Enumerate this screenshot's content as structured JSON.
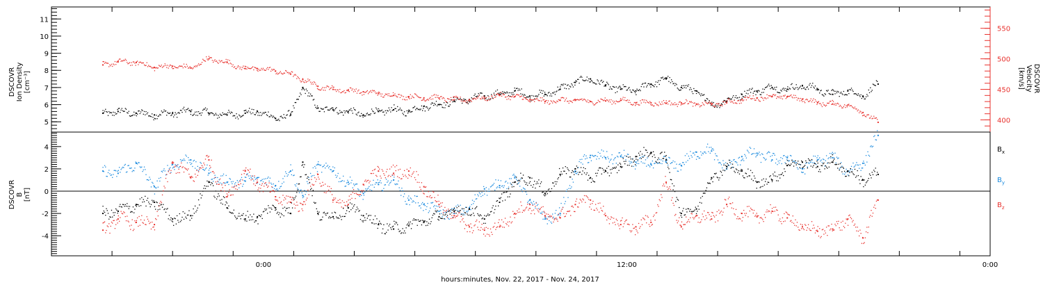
{
  "figure": {
    "xlabel": "hours:minutes, Nov. 22, 2017 - Nov. 24, 2017"
  },
  "chart_data": [
    {
      "type": "scatter",
      "panel": "top",
      "left_label": [
        "DSCOVR",
        "Ion Density",
        "[cm⁻³]"
      ],
      "right_label": [
        "DSCOVR",
        "Velocity",
        "[km/s]"
      ],
      "xlim_hours": [
        -7,
        24
      ],
      "x_ticks": [
        {
          "hour": 0,
          "label": "0:00"
        },
        {
          "hour": 12,
          "label": "12:00"
        },
        {
          "hour": 24,
          "label": "0:00"
        }
      ],
      "y_left_lim": [
        4.4,
        11.7
      ],
      "y_left_ticks": [
        5,
        6,
        7,
        8,
        9,
        10,
        11
      ],
      "y_right_lim": [
        380,
        585
      ],
      "y_right_ticks": [
        400,
        450,
        500,
        550
      ],
      "series": [
        {
          "axis": "left",
          "color": "#000000",
          "x_hours": [
            -5.3,
            -4.8,
            -4.2,
            -3.6,
            -3.0,
            -2.4,
            -1.8,
            -1.2,
            -0.6,
            -0.2,
            0.4,
            0.9,
            1.3,
            1.8,
            2.3,
            2.8,
            3.3,
            3.8,
            4.3,
            4.8,
            5.3,
            5.8,
            6.3,
            6.8,
            7.3,
            7.8,
            8.3,
            8.8,
            9.3,
            9.8,
            10.3,
            10.8,
            11.3,
            11.8,
            12.3,
            12.8,
            13.3,
            13.8,
            14.3,
            14.8,
            15.3,
            15.8,
            16.3,
            16.8,
            17.3,
            17.8,
            18.3,
            18.8,
            19.3,
            19.8,
            20.3
          ],
          "values": [
            5.5,
            5.6,
            5.5,
            5.4,
            5.5,
            5.6,
            5.5,
            5.4,
            5.5,
            5.6,
            5.2,
            5.4,
            7.0,
            5.8,
            5.7,
            5.6,
            5.4,
            5.6,
            5.7,
            5.6,
            5.9,
            6.0,
            6.2,
            6.3,
            6.5,
            6.6,
            6.8,
            6.5,
            6.6,
            6.9,
            7.3,
            7.5,
            7.1,
            6.9,
            6.8,
            7.2,
            7.5,
            7.0,
            6.8,
            6.0,
            6.2,
            6.6,
            6.8,
            7.0,
            6.9,
            7.1,
            6.9,
            6.6,
            6.8,
            6.5,
            7.2
          ]
        },
        {
          "axis": "right",
          "color": "#e8312d",
          "x_hours": [
            -5.3,
            -4.8,
            -4.2,
            -3.6,
            -3.0,
            -2.4,
            -1.8,
            -1.2,
            -0.6,
            -0.2,
            0.4,
            0.9,
            1.3,
            1.8,
            2.3,
            2.8,
            3.3,
            3.8,
            4.3,
            4.8,
            5.3,
            5.8,
            6.3,
            6.8,
            7.3,
            7.8,
            8.3,
            8.8,
            9.3,
            9.8,
            10.3,
            10.8,
            11.3,
            11.8,
            12.3,
            12.8,
            13.3,
            13.8,
            14.3,
            14.8,
            15.3,
            15.8,
            16.3,
            16.8,
            17.3,
            17.8,
            18.3,
            18.8,
            19.3,
            19.8,
            20.3
          ],
          "values": [
            490,
            495,
            494,
            486,
            488,
            485,
            500,
            494,
            484,
            484,
            480,
            475,
            466,
            455,
            450,
            448,
            446,
            443,
            440,
            438,
            436,
            436,
            433,
            433,
            436,
            440,
            438,
            433,
            430,
            432,
            432,
            430,
            431,
            432,
            428,
            428,
            427,
            428,
            426,
            425,
            428,
            433,
            436,
            438,
            438,
            434,
            428,
            426,
            424,
            412,
            396
          ]
        }
      ]
    },
    {
      "type": "scatter",
      "panel": "bottom",
      "left_label": [
        "DSCOVR",
        "B",
        "[nT]"
      ],
      "xlim_hours": [
        -7,
        24
      ],
      "y_lim": [
        -5.8,
        5.3
      ],
      "y_ticks": [
        -4,
        -2,
        0,
        2,
        4
      ],
      "zero_line": true,
      "series": [
        {
          "name": "B",
          "sub": "x",
          "color": "#000000",
          "x_hours": [
            -5.3,
            -4.8,
            -4.2,
            -3.6,
            -3.0,
            -2.4,
            -1.8,
            -1.2,
            -0.6,
            -0.2,
            0.4,
            0.9,
            1.3,
            1.8,
            2.3,
            2.8,
            3.3,
            3.8,
            4.3,
            4.8,
            5.3,
            5.8,
            6.3,
            6.8,
            7.3,
            7.8,
            8.3,
            8.8,
            9.3,
            9.8,
            10.3,
            10.8,
            11.3,
            11.8,
            12.3,
            12.8,
            13.3,
            13.8,
            14.3,
            14.8,
            15.3,
            15.8,
            16.3,
            16.8,
            17.3,
            17.8,
            18.3,
            18.8,
            19.3,
            19.8,
            20.3
          ],
          "values": [
            -2.0,
            -1.8,
            -1.2,
            -1.0,
            -2.5,
            -2.2,
            0.8,
            -1.5,
            -2.5,
            -2.3,
            -1.5,
            -2.0,
            2.6,
            -2.0,
            -2.3,
            -1.5,
            -2.2,
            -3.0,
            -3.4,
            -3.1,
            -2.7,
            -2.3,
            -1.8,
            -1.6,
            -2.5,
            -1.0,
            0.8,
            1.2,
            -0.2,
            1.5,
            2.0,
            1.2,
            1.8,
            2.2,
            3.1,
            3.4,
            2.8,
            -2.0,
            -1.6,
            1.2,
            2.2,
            1.8,
            0.8,
            1.0,
            2.3,
            2.6,
            2.2,
            2.6,
            1.8,
            1.0,
            1.5
          ]
        },
        {
          "name": "B",
          "sub": "y",
          "color": "#1a8ade",
          "x_hours": [
            -5.3,
            -4.8,
            -4.2,
            -3.6,
            -3.0,
            -2.4,
            -1.8,
            -1.2,
            -0.6,
            -0.2,
            0.4,
            0.9,
            1.3,
            1.8,
            2.3,
            2.8,
            3.3,
            3.8,
            4.3,
            4.8,
            5.3,
            5.8,
            6.3,
            6.8,
            7.3,
            7.8,
            8.3,
            8.8,
            9.3,
            9.8,
            10.3,
            10.8,
            11.3,
            11.8,
            12.3,
            12.8,
            13.3,
            13.8,
            14.3,
            14.8,
            15.3,
            15.8,
            16.3,
            16.8,
            17.3,
            17.8,
            18.3,
            18.8,
            19.3,
            19.8,
            20.3
          ],
          "values": [
            1.8,
            1.6,
            2.5,
            0.4,
            2.4,
            2.8,
            1.6,
            0.8,
            0.9,
            1.2,
            0.5,
            1.8,
            -0.4,
            2.4,
            1.8,
            0.8,
            -0.2,
            0.6,
            1.0,
            -0.8,
            -1.2,
            -1.8,
            -2.0,
            -1.5,
            0.2,
            0.5,
            1.2,
            -0.8,
            -2.5,
            -2.0,
            1.8,
            3.2,
            3.0,
            3.1,
            2.6,
            2.4,
            2.6,
            2.3,
            3.5,
            3.6,
            2.0,
            3.1,
            3.4,
            2.8,
            3.0,
            2.0,
            2.8,
            3.0,
            1.8,
            2.5,
            5.0
          ]
        },
        {
          "name": "B",
          "sub": "z",
          "color": "#e8312d",
          "x_hours": [
            -5.3,
            -4.8,
            -4.2,
            -3.6,
            -3.0,
            -2.4,
            -1.8,
            -1.2,
            -0.6,
            -0.2,
            0.4,
            0.9,
            1.3,
            1.8,
            2.3,
            2.8,
            3.3,
            3.8,
            4.3,
            4.8,
            5.3,
            5.8,
            6.3,
            6.8,
            7.3,
            7.8,
            8.3,
            8.8,
            9.3,
            9.8,
            10.3,
            10.8,
            11.3,
            11.8,
            12.3,
            12.8,
            13.3,
            13.8,
            14.3,
            14.8,
            15.3,
            15.8,
            16.3,
            16.8,
            17.3,
            17.8,
            18.3,
            18.8,
            19.3,
            19.8,
            20.3
          ],
          "values": [
            -3.5,
            -2.5,
            -2.8,
            -3.0,
            2.6,
            1.2,
            2.8,
            -0.5,
            1.8,
            0.8,
            -0.5,
            -1.0,
            -1.2,
            1.5,
            -0.8,
            -1.2,
            0.6,
            1.8,
            1.6,
            1.8,
            0.4,
            -1.2,
            -2.2,
            -3.2,
            -3.5,
            -3.2,
            -2.0,
            -1.2,
            -2.2,
            -2.4,
            -1.2,
            -0.8,
            -2.2,
            -3.0,
            -3.2,
            -2.8,
            0.8,
            -3.2,
            -2.2,
            -2.5,
            -1.2,
            -2.0,
            -2.3,
            -1.8,
            -2.4,
            -3.2,
            -3.6,
            -3.4,
            -2.5,
            -4.2,
            -0.8
          ]
        }
      ]
    }
  ]
}
